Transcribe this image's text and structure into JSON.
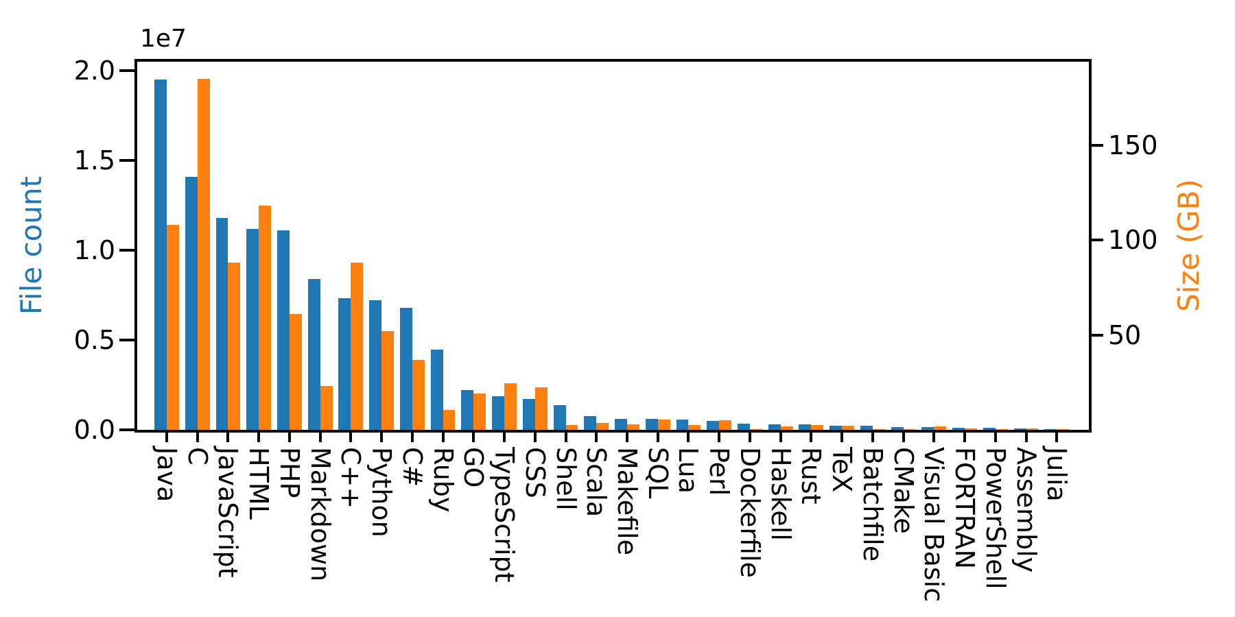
{
  "figure": {
    "offset_text": "1e7",
    "background": "#ffffff",
    "spine_color": "#000000",
    "left_axis": {
      "label": "File count",
      "color": "#1f77b4",
      "tick_labels": [
        "2.0",
        "1.5",
        "1.0",
        "0.5",
        "0.0"
      ],
      "tick_values": [
        20000000,
        15000000,
        10000000,
        5000000,
        0
      ],
      "max": 20500000
    },
    "right_axis": {
      "label": "Size (GB)",
      "color": "#ff7f0e",
      "tick_labels": [
        "150",
        "100",
        "50"
      ],
      "tick_values": [
        150,
        100,
        50
      ],
      "max": 194
    }
  },
  "chart_data": {
    "type": "bar",
    "title": "",
    "xlabel": "",
    "ylabel_left": "File count",
    "ylabel_right": "Size (GB)",
    "ylim_left": [
      0,
      20500000
    ],
    "ylim_right": [
      0,
      194
    ],
    "grid": false,
    "legend": "none",
    "x_tick_rotation_deg": 90,
    "categories": [
      "Java",
      "C",
      "JavaScript",
      "HTML",
      "PHP",
      "Markdown",
      "C++",
      "Python",
      "C#",
      "Ruby",
      "GO",
      "TypeScript",
      "CSS",
      "Shell",
      "Scala",
      "Makefile",
      "SQL",
      "Lua",
      "Perl",
      "Dockerfile",
      "Haskell",
      "Rust",
      "TeX",
      "Batchfile",
      "CMake",
      "Visual Basic",
      "FORTRAN",
      "PowerShell",
      "Assembly",
      "Julia"
    ],
    "series": [
      {
        "name": "File count",
        "axis": "left",
        "color": "#1f77b4",
        "values": [
          19500000,
          14100000,
          11800000,
          11200000,
          11100000,
          8400000,
          7350000,
          7200000,
          6800000,
          4460000,
          2230000,
          1880000,
          1710000,
          1360000,
          780000,
          630000,
          620000,
          570000,
          500000,
          350000,
          320000,
          310000,
          250000,
          240000,
          160000,
          150000,
          120000,
          110000,
          70000,
          40000
        ]
      },
      {
        "name": "Size (GB)",
        "axis": "right",
        "color": "#ff7f0e",
        "values": [
          108,
          185,
          88,
          118,
          61,
          23,
          88,
          52,
          37,
          10.5,
          19,
          24.5,
          22.5,
          2.7,
          3.8,
          3.0,
          5.4,
          2.6,
          5.0,
          0.5,
          1.8,
          2.6,
          2.3,
          0.3,
          0.3,
          1.9,
          0.8,
          0.3,
          0.9,
          0.2
        ]
      }
    ]
  },
  "layout_note": "dual-axis grouped bar chart"
}
